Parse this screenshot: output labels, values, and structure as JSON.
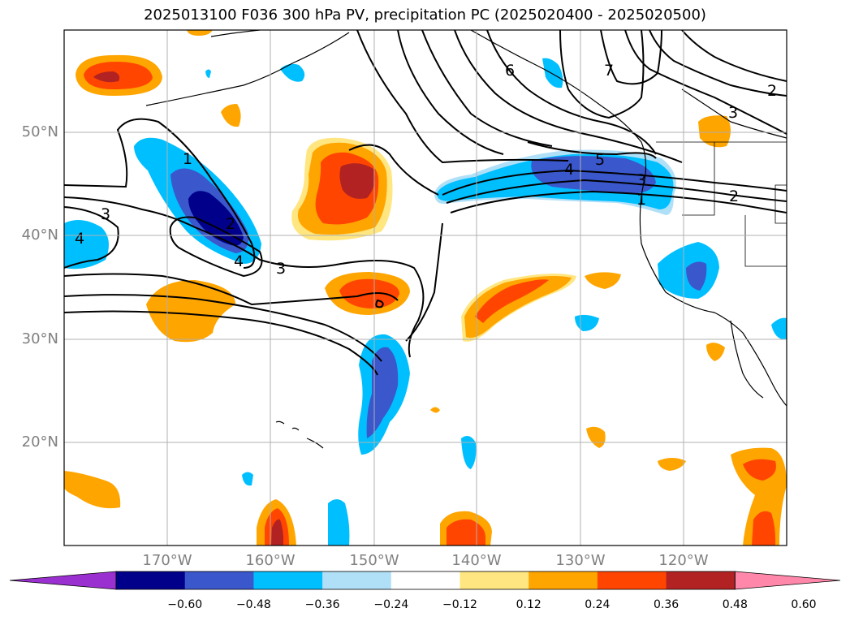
{
  "title": "2025013100 F036 300 hPa PV, precipitation PC (2025020400 - 2025020500)",
  "lat_labels": [
    "50°N",
    "40°N",
    "30°N",
    "20°N"
  ],
  "lon_labels": [
    "170°W",
    "160°W",
    "150°W",
    "140°W",
    "130°W",
    "120°W"
  ],
  "contour_labels": [
    "1",
    "2",
    "3",
    "4",
    "5",
    "6",
    "7"
  ],
  "colorbar": {
    "ticks": [
      "−0.60",
      "−0.48",
      "−0.36",
      "−0.24",
      "−0.12",
      "0.12",
      "0.24",
      "0.36",
      "0.48",
      "0.60"
    ],
    "colors": [
      "#9b30d0",
      "#00008b",
      "#3a57cc",
      "#00bfff",
      "#b0e0f8",
      "#ffffff",
      "#ffe680",
      "#ffa500",
      "#ff4500",
      "#b22222",
      "#ff88aa"
    ]
  },
  "colors": {
    "pv_contour": "#000000",
    "coastline": "#000000",
    "grid": "#b0b0b0"
  }
}
